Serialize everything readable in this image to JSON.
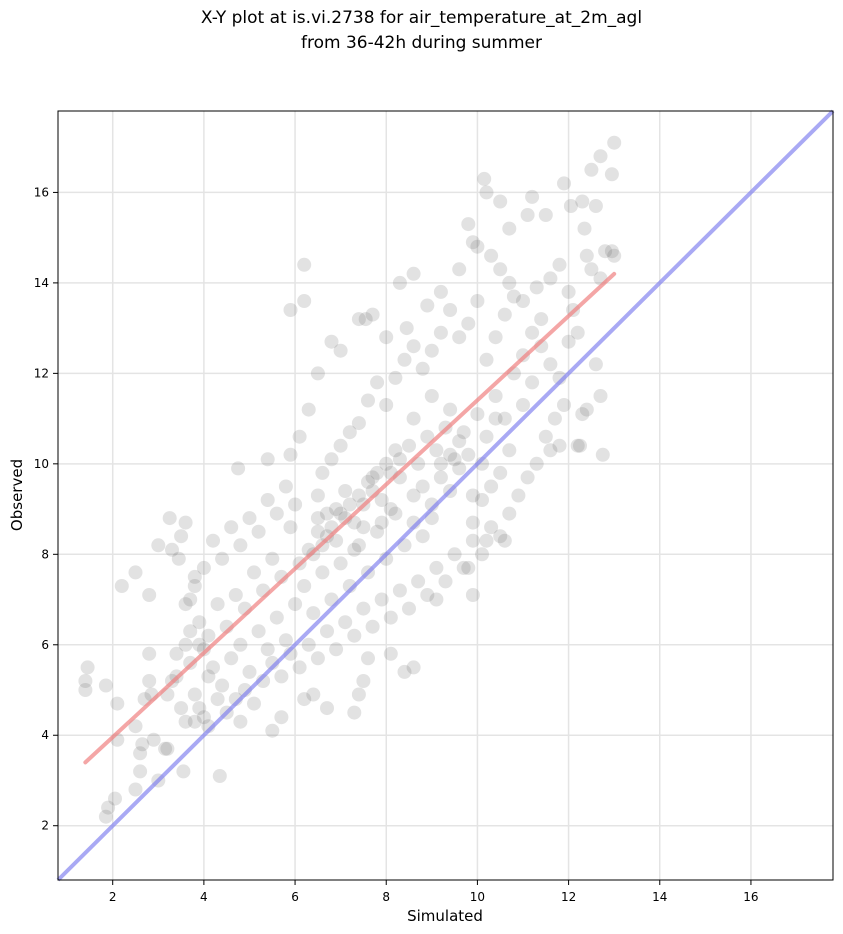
{
  "chart_data": {
    "type": "scatter",
    "title": [
      "X-Y plot at is.vi.2738 for air_temperature_at_2m_agl",
      "from 36-42h during summer"
    ],
    "xlabel": "Simulated",
    "ylabel": "Observed",
    "xlim": [
      0.8,
      17.8
    ],
    "ylim": [
      0.8,
      17.8
    ],
    "xticks": [
      2,
      4,
      6,
      8,
      10,
      12,
      14,
      16
    ],
    "yticks": [
      2,
      4,
      6,
      8,
      10,
      12,
      14,
      16
    ],
    "grid": true,
    "colors": {
      "points": "#555555",
      "fit_line": "#f08080",
      "identity_line": "#7b7bee"
    },
    "fit_line": {
      "x": [
        1.4,
        13.0
      ],
      "y": [
        3.4,
        14.2
      ]
    },
    "identity_line": {
      "x": [
        0.8,
        17.8
      ],
      "y": [
        0.8,
        17.8
      ]
    },
    "points": [
      [
        1.4,
        5.2
      ],
      [
        1.45,
        5.5
      ],
      [
        1.4,
        5.0
      ],
      [
        1.85,
        5.1
      ],
      [
        1.9,
        2.4
      ],
      [
        1.85,
        2.2
      ],
      [
        2.05,
        2.6
      ],
      [
        2.1,
        3.9
      ],
      [
        2.1,
        4.7
      ],
      [
        2.2,
        7.3
      ],
      [
        2.5,
        2.8
      ],
      [
        2.5,
        4.2
      ],
      [
        2.6,
        3.2
      ],
      [
        2.6,
        3.6
      ],
      [
        2.65,
        3.8
      ],
      [
        2.7,
        4.8
      ],
      [
        2.8,
        5.2
      ],
      [
        2.8,
        5.8
      ],
      [
        2.85,
        4.9
      ],
      [
        2.9,
        3.9
      ],
      [
        2.5,
        7.6
      ],
      [
        2.8,
        7.1
      ],
      [
        3.0,
        3.0
      ],
      [
        3.0,
        8.2
      ],
      [
        3.15,
        3.7
      ],
      [
        3.2,
        3.7
      ],
      [
        3.2,
        4.9
      ],
      [
        3.25,
        8.8
      ],
      [
        3.3,
        8.1
      ],
      [
        3.3,
        5.2
      ],
      [
        3.4,
        5.8
      ],
      [
        3.45,
        7.9
      ],
      [
        3.5,
        8.4
      ],
      [
        3.55,
        3.2
      ],
      [
        3.6,
        8.7
      ],
      [
        3.6,
        6.0
      ],
      [
        3.7,
        7.0
      ],
      [
        3.7,
        5.6
      ],
      [
        3.8,
        7.5
      ],
      [
        3.8,
        4.3
      ],
      [
        4.35,
        3.1
      ],
      [
        13.0,
        17.1
      ],
      [
        12.95,
        16.4
      ],
      [
        12.7,
        16.8
      ],
      [
        12.5,
        16.5
      ],
      [
        11.9,
        16.2
      ],
      [
        10.15,
        16.3
      ],
      [
        10.2,
        16.0
      ],
      [
        12.05,
        15.7
      ],
      [
        12.6,
        15.7
      ],
      [
        12.3,
        15.8
      ],
      [
        12.35,
        15.2
      ],
      [
        9.8,
        15.3
      ],
      [
        10.5,
        15.8
      ],
      [
        11.2,
        15.9
      ],
      [
        11.1,
        15.5
      ],
      [
        11.5,
        15.5
      ],
      [
        10.7,
        15.2
      ],
      [
        12.4,
        14.6
      ],
      [
        12.8,
        14.7
      ],
      [
        12.95,
        14.7
      ],
      [
        12.7,
        14.1
      ],
      [
        12.5,
        14.3
      ],
      [
        13.0,
        14.6
      ],
      [
        6.2,
        14.4
      ],
      [
        6.2,
        13.6
      ],
      [
        5.9,
        13.4
      ],
      [
        8.3,
        14.0
      ],
      [
        8.6,
        14.2
      ],
      [
        7.4,
        13.2
      ],
      [
        12.7,
        11.5
      ],
      [
        12.6,
        12.2
      ],
      [
        12.4,
        11.2
      ],
      [
        12.3,
        11.1
      ],
      [
        12.2,
        10.4
      ],
      [
        12.25,
        10.4
      ],
      [
        11.8,
        10.4
      ],
      [
        12.75,
        10.2
      ],
      [
        11.6,
        10.3
      ],
      [
        10.2,
        8.3
      ],
      [
        10.6,
        8.3
      ],
      [
        9.8,
        7.7
      ],
      [
        9.1,
        7.0
      ],
      [
        9.9,
        7.1
      ],
      [
        8.6,
        5.5
      ],
      [
        8.4,
        5.4
      ],
      [
        8.1,
        5.8
      ],
      [
        7.3,
        4.5
      ],
      [
        7.4,
        4.9
      ],
      [
        7.6,
        5.7
      ],
      [
        7.5,
        5.2
      ],
      [
        6.7,
        4.6
      ],
      [
        6.4,
        4.9
      ],
      [
        6.2,
        4.8
      ],
      [
        5.5,
        4.1
      ],
      [
        5.7,
        4.4
      ],
      [
        4.8,
        4.3
      ],
      [
        4.75,
        9.9
      ],
      [
        5.4,
        10.1
      ],
      [
        5.9,
        10.2
      ],
      [
        6.1,
        10.6
      ],
      [
        6.3,
        11.2
      ],
      [
        6.5,
        12.0
      ],
      [
        6.8,
        12.7
      ],
      [
        7.0,
        12.5
      ],
      [
        7.55,
        13.2
      ],
      [
        7.7,
        13.3
      ],
      [
        8.0,
        12.8
      ],
      [
        8.45,
        13.0
      ],
      [
        8.9,
        13.5
      ],
      [
        9.2,
        13.8
      ],
      [
        9.6,
        14.3
      ],
      [
        9.9,
        14.9
      ],
      [
        10.3,
        14.6
      ],
      [
        10.5,
        14.3
      ],
      [
        10.0,
        14.8
      ],
      [
        10.7,
        14.0
      ],
      [
        11.0,
        13.6
      ],
      [
        11.3,
        13.9
      ],
      [
        11.6,
        14.1
      ],
      [
        11.8,
        14.4
      ],
      [
        12.0,
        13.8
      ],
      [
        12.1,
        13.4
      ],
      [
        11.4,
        12.6
      ],
      [
        11.0,
        11.3
      ],
      [
        11.2,
        11.8
      ],
      [
        10.4,
        11.0
      ],
      [
        10.1,
        10.0
      ],
      [
        9.9,
        9.3
      ],
      [
        9.6,
        9.9
      ],
      [
        9.4,
        10.2
      ],
      [
        9.2,
        9.7
      ],
      [
        9.0,
        8.8
      ],
      [
        8.8,
        8.4
      ],
      [
        8.6,
        9.3
      ],
      [
        8.3,
        9.7
      ],
      [
        8.1,
        9.0
      ],
      [
        7.9,
        8.7
      ],
      [
        7.7,
        9.4
      ],
      [
        7.5,
        8.6
      ],
      [
        7.3,
        8.1
      ],
      [
        7.1,
        8.8
      ],
      [
        6.9,
        8.3
      ],
      [
        6.7,
        8.9
      ],
      [
        6.5,
        8.5
      ],
      [
        6.3,
        8.1
      ],
      [
        6.1,
        7.8
      ],
      [
        5.9,
        8.6
      ],
      [
        5.7,
        7.5
      ],
      [
        5.5,
        7.9
      ],
      [
        5.3,
        7.2
      ],
      [
        5.1,
        7.6
      ],
      [
        4.9,
        6.8
      ],
      [
        4.7,
        7.1
      ],
      [
        4.5,
        6.4
      ],
      [
        4.3,
        6.9
      ],
      [
        4.1,
        6.2
      ],
      [
        3.9,
        6.5
      ],
      [
        4.0,
        5.9
      ],
      [
        4.2,
        5.5
      ],
      [
        4.4,
        5.1
      ],
      [
        4.6,
        5.7
      ],
      [
        4.8,
        6.0
      ],
      [
        5.0,
        5.4
      ],
      [
        5.2,
        6.3
      ],
      [
        5.4,
        5.9
      ],
      [
        5.6,
        6.6
      ],
      [
        5.8,
        6.1
      ],
      [
        6.0,
        6.9
      ],
      [
        6.2,
        7.3
      ],
      [
        6.4,
        6.7
      ],
      [
        6.6,
        7.6
      ],
      [
        6.8,
        7.0
      ],
      [
        7.0,
        7.8
      ],
      [
        7.2,
        7.3
      ],
      [
        7.4,
        8.2
      ],
      [
        7.6,
        7.6
      ],
      [
        7.8,
        8.5
      ],
      [
        8.0,
        7.9
      ],
      [
        8.2,
        8.9
      ],
      [
        8.4,
        8.2
      ],
      [
        8.6,
        8.7
      ],
      [
        8.8,
        9.5
      ],
      [
        9.0,
        9.1
      ],
      [
        9.2,
        10.0
      ],
      [
        9.4,
        9.4
      ],
      [
        9.6,
        10.5
      ],
      [
        9.8,
        10.2
      ],
      [
        10.0,
        11.1
      ],
      [
        10.2,
        10.6
      ],
      [
        10.4,
        11.5
      ],
      [
        10.6,
        11.0
      ],
      [
        10.8,
        12.0
      ],
      [
        11.0,
        12.4
      ],
      [
        11.2,
        12.9
      ],
      [
        11.4,
        13.2
      ],
      [
        11.6,
        12.2
      ],
      [
        11.8,
        11.9
      ],
      [
        12.0,
        12.7
      ],
      [
        12.2,
        12.9
      ],
      [
        6.5,
        9.3
      ],
      [
        6.6,
        9.8
      ],
      [
        6.8,
        10.1
      ],
      [
        7.0,
        10.4
      ],
      [
        7.2,
        10.7
      ],
      [
        7.4,
        10.9
      ],
      [
        7.6,
        11.4
      ],
      [
        7.8,
        11.8
      ],
      [
        8.0,
        11.3
      ],
      [
        8.2,
        11.9
      ],
      [
        8.4,
        12.3
      ],
      [
        8.6,
        12.6
      ],
      [
        8.8,
        12.1
      ],
      [
        9.0,
        12.5
      ],
      [
        9.2,
        12.9
      ],
      [
        9.4,
        13.4
      ],
      [
        9.6,
        12.8
      ],
      [
        9.8,
        13.1
      ],
      [
        10.0,
        13.6
      ],
      [
        10.2,
        12.3
      ],
      [
        10.4,
        12.8
      ],
      [
        10.6,
        13.3
      ],
      [
        10.8,
        13.7
      ],
      [
        6.0,
        9.1
      ],
      [
        5.8,
        9.5
      ],
      [
        5.6,
        8.9
      ],
      [
        5.4,
        9.2
      ],
      [
        5.2,
        8.5
      ],
      [
        5.0,
        8.8
      ],
      [
        4.8,
        8.2
      ],
      [
        4.6,
        8.6
      ],
      [
        4.4,
        7.9
      ],
      [
        4.2,
        8.3
      ],
      [
        4.0,
        7.7
      ],
      [
        3.8,
        7.3
      ],
      [
        3.6,
        6.9
      ],
      [
        3.7,
        6.3
      ],
      [
        3.9,
        6.0
      ],
      [
        4.1,
        5.3
      ],
      [
        4.3,
        4.8
      ],
      [
        4.0,
        4.4
      ],
      [
        3.9,
        4.6
      ],
      [
        4.1,
        4.2
      ],
      [
        3.6,
        4.3
      ],
      [
        3.8,
        4.9
      ],
      [
        3.4,
        5.3
      ],
      [
        3.5,
        4.6
      ],
      [
        4.5,
        4.5
      ],
      [
        4.7,
        4.8
      ],
      [
        4.9,
        5.0
      ],
      [
        5.1,
        4.7
      ],
      [
        5.3,
        5.2
      ],
      [
        5.5,
        5.6
      ],
      [
        5.7,
        5.3
      ],
      [
        5.9,
        5.8
      ],
      [
        6.1,
        5.5
      ],
      [
        6.3,
        6.0
      ],
      [
        6.5,
        5.7
      ],
      [
        6.7,
        6.3
      ],
      [
        6.9,
        5.9
      ],
      [
        7.1,
        6.5
      ],
      [
        7.3,
        6.2
      ],
      [
        7.5,
        6.8
      ],
      [
        7.7,
        6.4
      ],
      [
        7.9,
        7.0
      ],
      [
        8.1,
        6.6
      ],
      [
        8.3,
        7.2
      ],
      [
        8.5,
        6.8
      ],
      [
        8.7,
        7.4
      ],
      [
        8.9,
        7.1
      ],
      [
        9.1,
        7.7
      ],
      [
        9.3,
        7.4
      ],
      [
        9.5,
        8.0
      ],
      [
        9.7,
        7.7
      ],
      [
        9.9,
        8.3
      ],
      [
        10.1,
        8.0
      ],
      [
        10.3,
        8.6
      ],
      [
        10.5,
        8.4
      ],
      [
        10.7,
        8.9
      ],
      [
        10.9,
        9.3
      ],
      [
        11.1,
        9.7
      ],
      [
        11.3,
        10.0
      ],
      [
        11.5,
        10.6
      ],
      [
        11.7,
        11.0
      ],
      [
        11.9,
        11.3
      ],
      [
        10.7,
        10.3
      ],
      [
        10.5,
        9.8
      ],
      [
        10.3,
        9.5
      ],
      [
        10.1,
        9.2
      ],
      [
        9.9,
        8.7
      ],
      [
        6.4,
        8.0
      ],
      [
        6.6,
        8.2
      ],
      [
        6.8,
        8.6
      ],
      [
        7.0,
        8.9
      ],
      [
        7.2,
        9.1
      ],
      [
        7.4,
        9.3
      ],
      [
        7.6,
        9.6
      ],
      [
        7.8,
        9.8
      ],
      [
        8.0,
        10.0
      ],
      [
        8.2,
        10.3
      ],
      [
        6.5,
        8.8
      ],
      [
        6.7,
        8.4
      ],
      [
        6.9,
        9.0
      ],
      [
        7.1,
        9.4
      ],
      [
        7.3,
        8.7
      ],
      [
        7.5,
        9.1
      ],
      [
        7.7,
        9.7
      ],
      [
        7.9,
        9.2
      ],
      [
        8.1,
        9.8
      ],
      [
        8.3,
        10.1
      ],
      [
        8.5,
        10.4
      ],
      [
        8.7,
        10.0
      ],
      [
        8.9,
        10.6
      ],
      [
        9.1,
        10.3
      ],
      [
        9.3,
        10.8
      ],
      [
        9.5,
        10.1
      ],
      [
        9.7,
        10.7
      ],
      [
        9.4,
        11.2
      ],
      [
        9.0,
        11.5
      ],
      [
        8.6,
        11.0
      ]
    ]
  }
}
